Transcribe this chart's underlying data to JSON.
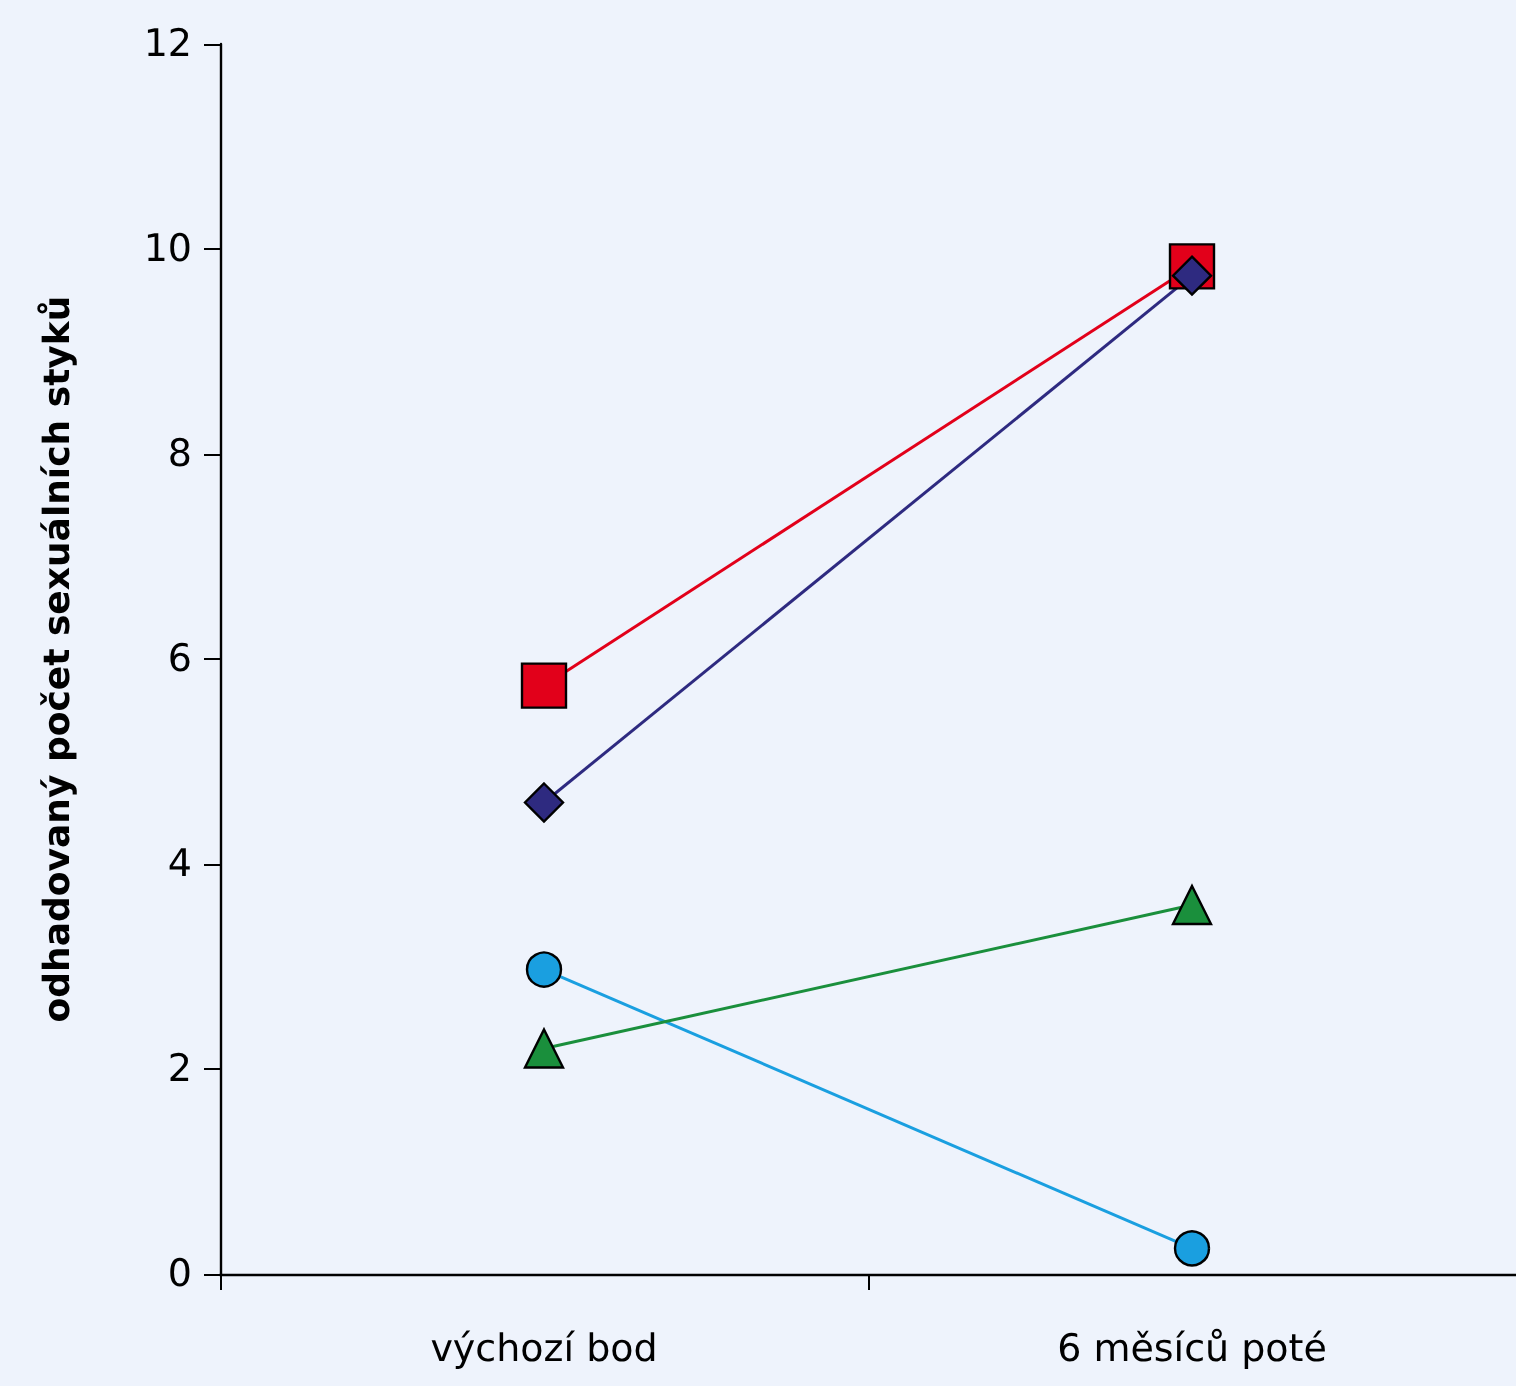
{
  "chart_data": {
    "type": "line",
    "ylabel": "odhadovaný počet sexuálních styků",
    "categories": [
      "výchozí bod",
      "6 měsíců poté"
    ],
    "ylim": [
      0,
      12
    ],
    "yticks": [
      0,
      2,
      4,
      6,
      8,
      10,
      12
    ],
    "grid": false,
    "series": [
      {
        "color": "#1a9fe0",
        "marker": "circle",
        "values": [
          2.97,
          0.25
        ]
      },
      {
        "color": "#1a8f3c",
        "marker": "triangle",
        "values": [
          2.2,
          3.6
        ]
      },
      {
        "color": "#e2001a",
        "marker": "square",
        "values": [
          5.74,
          9.83
        ]
      },
      {
        "color": "#2e2a80",
        "marker": "diamond",
        "values": [
          4.6,
          9.74
        ]
      }
    ]
  }
}
